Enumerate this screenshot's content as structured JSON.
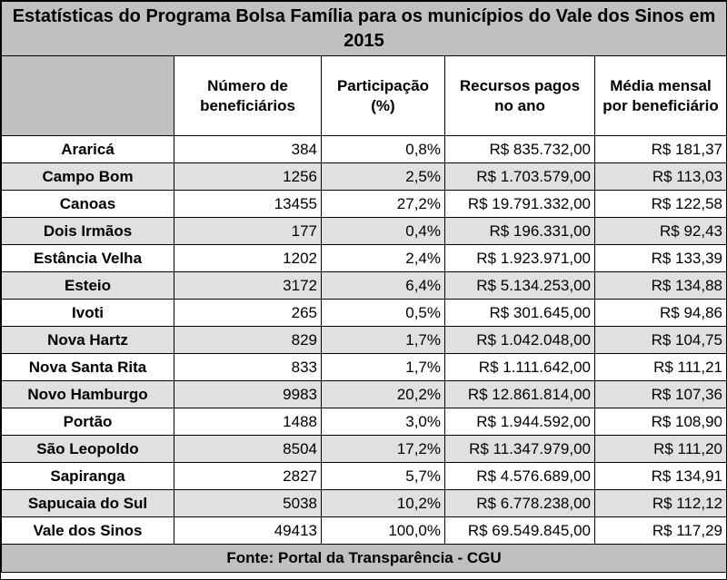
{
  "chart_data": {
    "type": "table",
    "title": "Estatísticas do Programa Bolsa Família para os municípios do Vale dos Sinos em 2015",
    "columns": [
      "",
      "Número de beneficiários",
      "Participação (%)",
      "Recursos pagos no ano",
      "Média mensal por beneficiário"
    ],
    "rows": [
      {
        "municipio": "Araricá",
        "beneficiarios": "384",
        "participacao": "0,8%",
        "recursos": "R$ 835.732,00",
        "media": "R$ 181,37"
      },
      {
        "municipio": "Campo Bom",
        "beneficiarios": "1256",
        "participacao": "2,5%",
        "recursos": "R$ 1.703.579,00",
        "media": "R$ 113,03"
      },
      {
        "municipio": "Canoas",
        "beneficiarios": "13455",
        "participacao": "27,2%",
        "recursos": "R$ 19.791.332,00",
        "media": "R$ 122,58"
      },
      {
        "municipio": "Dois Irmãos",
        "beneficiarios": "177",
        "participacao": "0,4%",
        "recursos": "R$ 196.331,00",
        "media": "R$ 92,43"
      },
      {
        "municipio": "Estância Velha",
        "beneficiarios": "1202",
        "participacao": "2,4%",
        "recursos": "R$ 1.923.971,00",
        "media": "R$ 133,39"
      },
      {
        "municipio": "Esteio",
        "beneficiarios": "3172",
        "participacao": "6,4%",
        "recursos": "R$ 5.134.253,00",
        "media": "R$ 134,88"
      },
      {
        "municipio": "Ivoti",
        "beneficiarios": "265",
        "participacao": "0,5%",
        "recursos": "R$ 301.645,00",
        "media": "R$ 94,86"
      },
      {
        "municipio": "Nova Hartz",
        "beneficiarios": "829",
        "participacao": "1,7%",
        "recursos": "R$ 1.042.048,00",
        "media": "R$ 104,75"
      },
      {
        "municipio": "Nova Santa Rita",
        "beneficiarios": "833",
        "participacao": "1,7%",
        "recursos": "R$ 1.111.642,00",
        "media": "R$ 111,21"
      },
      {
        "municipio": "Novo Hamburgo",
        "beneficiarios": "9983",
        "participacao": "20,2%",
        "recursos": "R$ 12.861.814,00",
        "media": "R$ 107,36"
      },
      {
        "municipio": "Portão",
        "beneficiarios": "1488",
        "participacao": "3,0%",
        "recursos": "R$ 1.944.592,00",
        "media": "R$ 108,90"
      },
      {
        "municipio": "São Leopoldo",
        "beneficiarios": "8504",
        "participacao": "17,2%",
        "recursos": "R$ 11.347.979,00",
        "media": "R$ 111,20"
      },
      {
        "municipio": "Sapiranga",
        "beneficiarios": "2827",
        "participacao": "5,7%",
        "recursos": "R$ 4.576.689,00",
        "media": "R$ 134,91"
      },
      {
        "municipio": "Sapucaia do Sul",
        "beneficiarios": "5038",
        "participacao": "10,2%",
        "recursos": "R$ 6.778.238,00",
        "media": "R$ 112,12"
      },
      {
        "municipio": "Vale dos Sinos",
        "beneficiarios": "49413",
        "participacao": "100,0%",
        "recursos": "R$ 69.549.845,00",
        "media": "R$ 117,29"
      }
    ],
    "source": "Fonte: Portal da Transparência - CGU"
  },
  "colors": {
    "title_bg": "#c0c0c0",
    "even_row_bg": "#e0e0e0",
    "odd_row_bg": "#ffffff",
    "border": "#000000"
  }
}
